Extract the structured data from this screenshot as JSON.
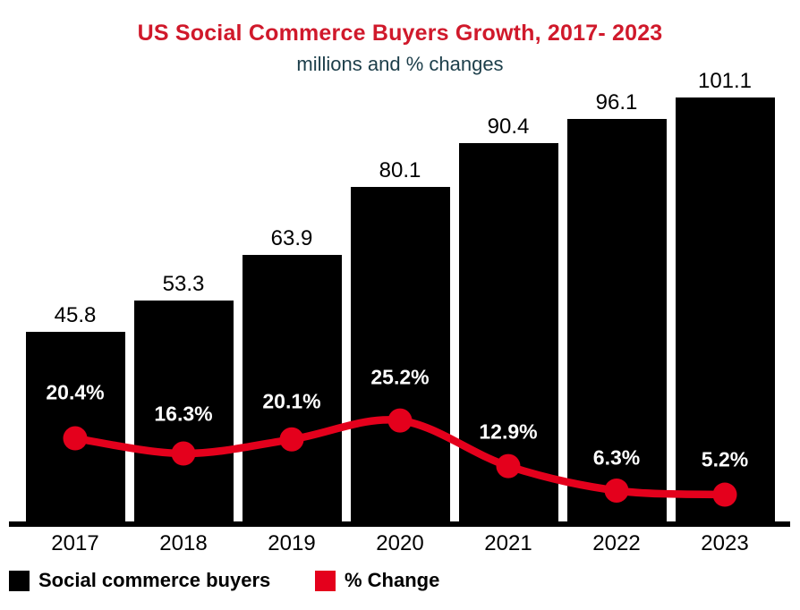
{
  "title": "US Social Commerce Buyers Growth, 2017- 2023",
  "subtitle": "millions and % changes",
  "colors": {
    "background": "#ffffff",
    "title": "#d0192b",
    "subtitle": "#1c3e4a",
    "bar": "#000000",
    "line": "#e4001c",
    "bar_value_label": "#000000",
    "pct_label": "#ffffff",
    "axis": "#000000"
  },
  "legend": [
    {
      "label": "Social commerce buyers",
      "color": "#000000"
    },
    {
      "label": "% Change",
      "color": "#e4001c"
    }
  ],
  "chart_data": {
    "type": "bar",
    "title": "US Social Commerce Buyers Growth, 2017- 2023",
    "subtitle": "millions and % changes",
    "categories": [
      "2017",
      "2018",
      "2019",
      "2020",
      "2021",
      "2022",
      "2023"
    ],
    "series": [
      {
        "name": "Social commerce buyers",
        "type": "bar",
        "unit": "millions",
        "values": [
          45.8,
          53.3,
          63.9,
          80.1,
          90.4,
          96.1,
          101.1
        ],
        "labels": [
          "45.8",
          "53.3",
          "63.9",
          "80.1",
          "90.4",
          "96.1",
          "101.1"
        ]
      },
      {
        "name": "% Change",
        "type": "line",
        "unit": "percent",
        "values": [
          20.4,
          16.3,
          20.1,
          25.2,
          12.9,
          6.3,
          5.2
        ],
        "labels": [
          "20.4%",
          "16.3%",
          "20.1%",
          "25.2%",
          "12.9%",
          "6.3%",
          "5.2%"
        ]
      }
    ],
    "xlabel": "",
    "ylabel": "",
    "grid": false,
    "legend_position": "bottom-left",
    "value_labels_position": "above-bars",
    "pct_labels_position": "above-line-points"
  }
}
